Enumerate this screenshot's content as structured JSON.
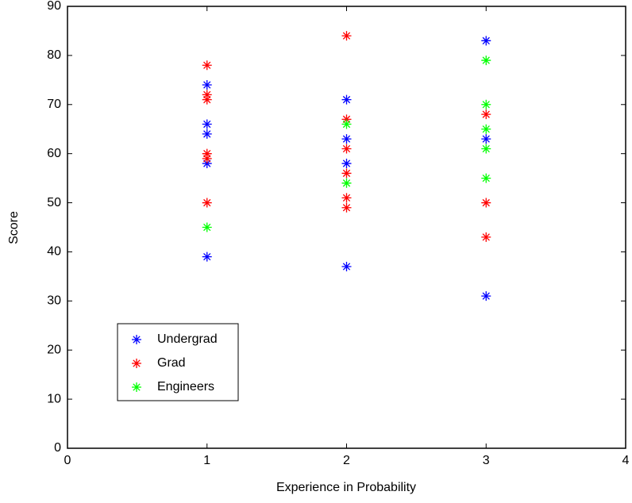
{
  "chart_data": {
    "type": "scatter",
    "x_label": "Experience in Probability",
    "y_label": "Score",
    "xlim": [
      0,
      4
    ],
    "xticks": [
      0,
      1,
      2,
      3,
      4
    ],
    "ylim": [
      0,
      90
    ],
    "yticks": [
      0,
      10,
      20,
      30,
      40,
      50,
      60,
      70,
      80,
      90
    ],
    "grid": false,
    "legend": "lower left",
    "series": [
      {
        "name": "Undergrad",
        "color": "#0000ff",
        "x": [
          1,
          1,
          1,
          1,
          1,
          2,
          2,
          2,
          2,
          3,
          3,
          3
        ],
        "values": [
          74,
          66,
          64,
          58,
          39,
          71,
          63,
          58,
          37,
          83,
          63,
          31
        ]
      },
      {
        "name": "Grad",
        "color": "#ff0000",
        "x": [
          1,
          1,
          1,
          1,
          1,
          1,
          2,
          2,
          2,
          2,
          2,
          2,
          3,
          3,
          3
        ],
        "values": [
          78,
          72,
          71,
          60,
          59,
          50,
          84,
          67,
          61,
          56,
          51,
          49,
          68,
          50,
          43
        ]
      },
      {
        "name": "Engineers",
        "color": "#00ff00",
        "x": [
          1,
          2,
          2,
          3,
          3,
          3,
          3,
          3
        ],
        "values": [
          45,
          66,
          54,
          79,
          70,
          65,
          61,
          55
        ]
      }
    ]
  }
}
